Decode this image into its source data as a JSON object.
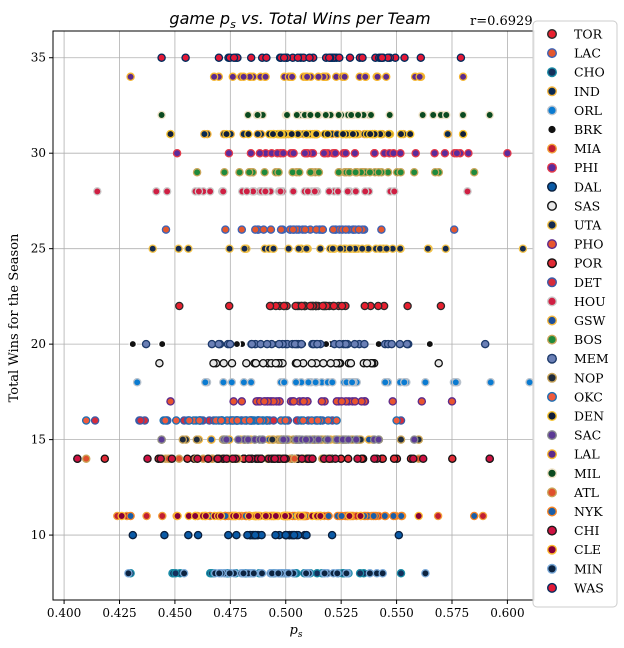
{
  "chart_data": {
    "type": "scatter",
    "title": "game p_s vs. Total Wins per Team",
    "title_parts": {
      "pre": "game ",
      "sym": "p",
      "sub": "s",
      "post": " vs. Total Wins per Team"
    },
    "annotation": "r=0.6929",
    "xlabel": "p_s",
    "xlabel_parts": {
      "sym": "p",
      "sub": "s"
    },
    "ylabel": "Total Wins for the Season",
    "xlim": [
      0.395,
      0.612
    ],
    "ylim": [
      6.6,
      36.4
    ],
    "xticks": [
      0.4,
      0.425,
      0.45,
      0.475,
      0.5,
      0.525,
      0.55,
      0.575,
      0.6
    ],
    "xtick_labels": [
      "0.400",
      "0.425",
      "0.450",
      "0.475",
      "0.500",
      "0.525",
      "0.550",
      "0.575",
      "0.600"
    ],
    "yticks": [
      10,
      15,
      20,
      25,
      30,
      35
    ],
    "ytick_labels": [
      "10",
      "15",
      "20",
      "25",
      "30",
      "35"
    ],
    "grid": true,
    "legend_position": "right-outside",
    "series": [
      {
        "name": "TOR",
        "wins": 22,
        "x_min": 0.452,
        "x_max": 0.57,
        "n": 42,
        "fill": "#e8202f",
        "edge": "#2b2b2b"
      },
      {
        "name": "LAC",
        "wins": 26,
        "x_min": 0.446,
        "x_max": 0.576,
        "n": 40,
        "fill": "#e4572e",
        "edge": "#3a62b6"
      },
      {
        "name": "CHO",
        "wins": 8,
        "x_min": 0.43,
        "x_max": 0.552,
        "n": 45,
        "fill": "#14305c",
        "edge": "#1a8ba6"
      },
      {
        "name": "IND",
        "wins": 31,
        "x_min": 0.448,
        "x_max": 0.58,
        "n": 44,
        "fill": "#0a2a52",
        "edge": "#f2b33d"
      },
      {
        "name": "ORL",
        "wins": 18,
        "x_min": 0.433,
        "x_max": 0.61,
        "n": 38,
        "fill": "#0a7bd1",
        "edge": "#b9c2cc"
      },
      {
        "name": "BRK",
        "wins": 20,
        "x_min": 0.431,
        "x_max": 0.565,
        "n": 32,
        "fill": "#111111",
        "edge": "#ffffff"
      },
      {
        "name": "MIA",
        "wins": 11,
        "x_min": 0.424,
        "x_max": 0.589,
        "n": 44,
        "fill": "#c21f32",
        "edge": "#f2a03a"
      },
      {
        "name": "PHI",
        "wins": 30,
        "x_min": 0.451,
        "x_max": 0.6,
        "n": 40,
        "fill": "#5b2b9b",
        "edge": "#e23a4a"
      },
      {
        "name": "DAL",
        "wins": 10,
        "x_min": 0.431,
        "x_max": 0.551,
        "n": 34,
        "fill": "#0a5aa6",
        "edge": "#0a1f3d"
      },
      {
        "name": "SAS",
        "wins": 19,
        "x_min": 0.443,
        "x_max": 0.569,
        "n": 34,
        "fill": "#e8e8e8",
        "edge": "#111111"
      },
      {
        "name": "UTA",
        "wins": 25,
        "x_min": 0.44,
        "x_max": 0.607,
        "n": 46,
        "fill": "#152a4f",
        "edge": "#f2c24a"
      },
      {
        "name": "PHO",
        "wins": 17,
        "x_min": 0.448,
        "x_max": 0.575,
        "n": 40,
        "fill": "#e8552e",
        "edge": "#5c2a8c"
      },
      {
        "name": "POR",
        "wins": 14,
        "x_min": 0.406,
        "x_max": 0.592,
        "n": 40,
        "fill": "#e02a35",
        "edge": "#111111"
      },
      {
        "name": "DET",
        "wins": 16,
        "x_min": 0.414,
        "x_max": 0.552,
        "n": 46,
        "fill": "#d62b3b",
        "edge": "#3a5ca8"
      },
      {
        "name": "HOU",
        "wins": 28,
        "x_min": 0.415,
        "x_max": 0.582,
        "n": 44,
        "fill": "#cf1f43",
        "edge": "#c9c9c9"
      },
      {
        "name": "GSW",
        "wins": 15,
        "x_min": 0.444,
        "x_max": 0.56,
        "n": 42,
        "fill": "#1d4f9b",
        "edge": "#f2b63d"
      },
      {
        "name": "BOS",
        "wins": 29,
        "x_min": 0.46,
        "x_max": 0.585,
        "n": 42,
        "fill": "#1f8a3c",
        "edge": "#c9a55a"
      },
      {
        "name": "MEM",
        "wins": 20,
        "x_min": 0.437,
        "x_max": 0.59,
        "n": 42,
        "fill": "#6a7fb5",
        "edge": "#1d3a6b"
      },
      {
        "name": "NOP",
        "wins": 15,
        "x_min": 0.444,
        "x_max": 0.56,
        "n": 38,
        "fill": "#1f2b3d",
        "edge": "#c9a55a"
      },
      {
        "name": "OKC",
        "wins": 16,
        "x_min": 0.41,
        "x_max": 0.55,
        "n": 40,
        "fill": "#ef5a3c",
        "edge": "#1a6fb5"
      },
      {
        "name": "DEN",
        "wins": 31,
        "x_min": 0.448,
        "x_max": 0.58,
        "n": 40,
        "fill": "#101e3a",
        "edge": "#f5c431"
      },
      {
        "name": "SAC",
        "wins": 15,
        "x_min": 0.444,
        "x_max": 0.558,
        "n": 36,
        "fill": "#5b3a95",
        "edge": "#8b8d8f"
      },
      {
        "name": "LAL",
        "wins": 34,
        "x_min": 0.43,
        "x_max": 0.58,
        "n": 40,
        "fill": "#5c2a8c",
        "edge": "#f5b52e"
      },
      {
        "name": "MIL",
        "wins": 32,
        "x_min": 0.444,
        "x_max": 0.592,
        "n": 40,
        "fill": "#0b4a1f",
        "edge": "#eee1c6"
      },
      {
        "name": "ATL",
        "wins": 14,
        "x_min": 0.41,
        "x_max": 0.56,
        "n": 36,
        "fill": "#e0502c",
        "edge": "#c9a55a"
      },
      {
        "name": "NYK",
        "wins": 11,
        "x_min": 0.43,
        "x_max": 0.585,
        "n": 40,
        "fill": "#1a5ea8",
        "edge": "#f58426"
      },
      {
        "name": "CHI",
        "wins": 14,
        "x_min": 0.406,
        "x_max": 0.592,
        "n": 42,
        "fill": "#ce1141",
        "edge": "#1b1b1b"
      },
      {
        "name": "CLE",
        "wins": 11,
        "x_min": 0.426,
        "x_max": 0.56,
        "n": 40,
        "fill": "#860038",
        "edge": "#fdbb30"
      },
      {
        "name": "MIN",
        "wins": 8,
        "x_min": 0.429,
        "x_max": 0.563,
        "n": 46,
        "fill": "#0c2340",
        "edge": "#7aa9d8"
      },
      {
        "name": "WAS",
        "wins": 35,
        "x_min": 0.444,
        "x_max": 0.579,
        "n": 44,
        "fill": "#e31837",
        "edge": "#002b5c"
      }
    ]
  }
}
